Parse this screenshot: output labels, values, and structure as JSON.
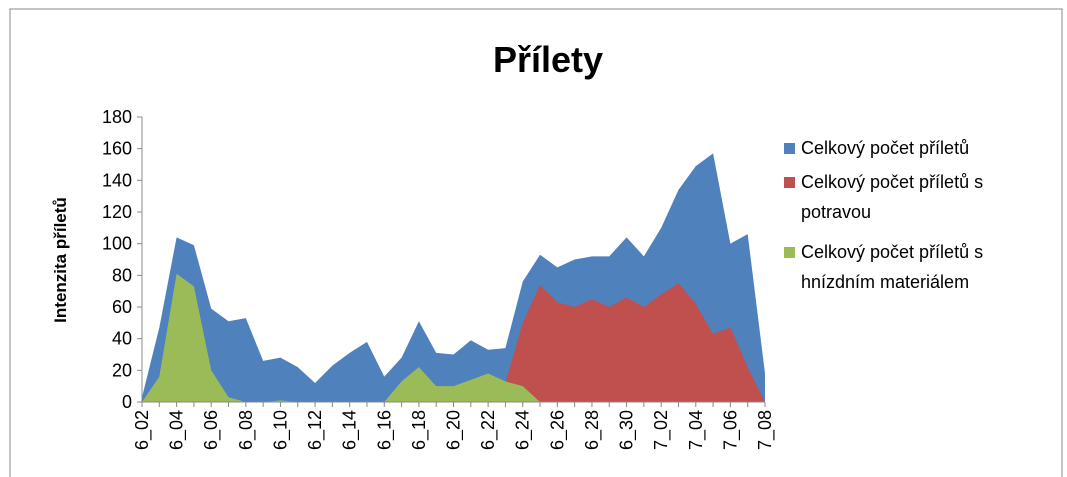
{
  "chart_data": {
    "type": "area",
    "title": "Přílety",
    "y_label": "Intenzita příletů",
    "categories": [
      "6_02",
      null,
      "6_04",
      null,
      "6_06",
      null,
      "6_08",
      null,
      "6_10",
      null,
      "6_12",
      null,
      "6_14",
      null,
      "6_16",
      null,
      "6_18",
      null,
      "6_20",
      null,
      "6_22",
      null,
      "6_24",
      null,
      "6_26",
      null,
      "6_28",
      null,
      "6_30",
      null,
      "7_02",
      null,
      "7_04",
      null,
      "7_06",
      null,
      "7_08"
    ],
    "series": [
      {
        "name": "Celkový počet příletů",
        "color": "#4f81bd",
        "values": [
          3,
          47,
          104,
          99,
          59,
          51,
          53,
          26,
          28,
          22,
          12,
          23,
          31,
          38,
          16,
          28,
          51,
          31,
          30,
          39,
          33,
          34,
          76,
          93,
          85,
          90,
          92,
          92,
          104,
          92,
          110,
          134,
          149,
          157,
          100,
          106,
          18
        ]
      },
      {
        "name": "Celkový počet příletů s potravou",
        "color": "#c0504d",
        "values": [
          0,
          0,
          0,
          0,
          0,
          0,
          0,
          0,
          0,
          0,
          0,
          0,
          0,
          0,
          0,
          0,
          0,
          0,
          0,
          0,
          0,
          12,
          50,
          74,
          63,
          60,
          65,
          60,
          66,
          60,
          68,
          75,
          62,
          43,
          47,
          22,
          0
        ]
      },
      {
        "name": "Celkový počet příletů s hnízdním materiálem",
        "color": "#9bbb59",
        "values": [
          0,
          16,
          81,
          73,
          20,
          3,
          0,
          0,
          1,
          0,
          0,
          0,
          0,
          0,
          0,
          13,
          22,
          10,
          10,
          14,
          18,
          13,
          10,
          0,
          0,
          0,
          0,
          0,
          0,
          0,
          0,
          0,
          0,
          0,
          0,
          0,
          0
        ]
      }
    ],
    "ylim": [
      0,
      180
    ],
    "yticks": [
      0,
      20,
      40,
      60,
      80,
      100,
      120,
      140,
      160,
      180
    ],
    "legend": "right"
  }
}
